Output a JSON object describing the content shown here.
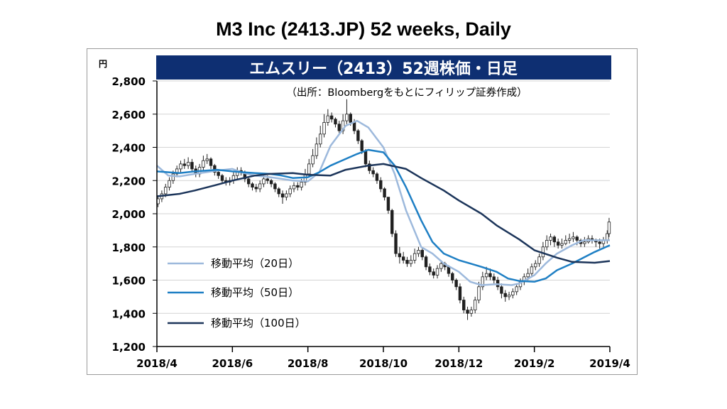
{
  "page": {
    "title": "M3 Inc (2413.JP) 52 weeks, Daily"
  },
  "chart_data": {
    "type": "line",
    "chart_title": "エムスリー（2413）52週株価・日足",
    "source_note": "（出所：Bloombergをもとにフィリップ証券作成）",
    "y_unit": "円",
    "ylim": [
      1200,
      2800
    ],
    "y_ticks": [
      1200,
      1400,
      1600,
      1800,
      2000,
      2200,
      2400,
      2600,
      2800
    ],
    "y_tick_labels": [
      "1,200",
      "1,400",
      "1,600",
      "1,800",
      "2,000",
      "2,200",
      "2,400",
      "2,600",
      "2,800"
    ],
    "x_tick_labels": [
      "2018/4",
      "2018/6",
      "2018/8",
      "2018/10",
      "2018/12",
      "2019/2",
      "2019/4"
    ],
    "x_range": [
      "2018/4",
      "2019/4"
    ],
    "grid": "horizontal",
    "legend_position": "bottom-left",
    "colors": {
      "title_bar": "#0e2f72",
      "candle": "#202020",
      "ma20": "#9db9dc",
      "ma50": "#1e7fc4",
      "ma100": "#1c355a",
      "grid": "#d4d4d4"
    },
    "series": [
      {
        "name": "移動平均（20日）",
        "key": "ma20",
        "x": [
          0.0,
          0.3,
          0.6,
          1.0,
          1.3,
          1.6,
          2.0,
          2.3,
          2.6,
          3.0,
          3.3,
          3.6,
          4.0,
          4.3,
          4.6,
          4.9,
          5.0,
          5.3,
          5.6,
          6.0,
          6.3,
          6.6,
          7.0,
          7.3,
          7.6,
          8.0,
          8.3,
          8.6,
          9.0,
          9.4,
          9.6,
          10.0,
          10.3,
          10.6,
          11.0,
          11.3,
          11.6,
          12.0
        ],
        "y": [
          2290,
          2230,
          2225,
          2240,
          2250,
          2260,
          2270,
          2245,
          2230,
          2220,
          2210,
          2200,
          2195,
          2250,
          2410,
          2500,
          2530,
          2560,
          2520,
          2400,
          2240,
          2020,
          1800,
          1760,
          1700,
          1650,
          1590,
          1570,
          1575,
          1570,
          1580,
          1630,
          1700,
          1760,
          1810,
          1840,
          1840,
          1840
        ]
      },
      {
        "name": "移動平均（50日）",
        "key": "ma50",
        "x": [
          0.0,
          0.6,
          1.0,
          1.3,
          1.6,
          2.0,
          2.3,
          2.6,
          3.0,
          3.3,
          3.6,
          4.0,
          4.3,
          4.6,
          5.0,
          5.3,
          5.6,
          6.0,
          6.3,
          6.6,
          7.0,
          7.3,
          7.6,
          8.0,
          8.3,
          8.6,
          9.0,
          9.3,
          9.6,
          10.0,
          10.3,
          10.6,
          11.0,
          11.3,
          11.6,
          12.0
        ],
        "y": [
          2255,
          2245,
          2255,
          2260,
          2265,
          2255,
          2250,
          2245,
          2240,
          2230,
          2215,
          2220,
          2250,
          2290,
          2330,
          2360,
          2385,
          2370,
          2290,
          2160,
          1960,
          1830,
          1760,
          1720,
          1700,
          1680,
          1650,
          1610,
          1595,
          1590,
          1610,
          1660,
          1700,
          1735,
          1770,
          1810
        ]
      },
      {
        "name": "移動平均（100日）",
        "key": "ma100",
        "x": [
          0.0,
          0.6,
          1.0,
          1.6,
          2.0,
          2.6,
          3.0,
          3.6,
          4.0,
          4.6,
          5.0,
          5.6,
          6.0,
          6.6,
          7.0,
          7.6,
          8.0,
          8.6,
          9.0,
          9.6,
          10.0,
          10.6,
          11.0,
          11.6,
          12.0
        ],
        "y": [
          2105,
          2120,
          2140,
          2175,
          2200,
          2230,
          2240,
          2245,
          2235,
          2230,
          2265,
          2290,
          2300,
          2270,
          2215,
          2140,
          2080,
          2000,
          1930,
          1845,
          1780,
          1735,
          1710,
          1705,
          1715
        ]
      }
    ],
    "candles": {
      "x": [
        0.03,
        0.13,
        0.23,
        0.33,
        0.43,
        0.53,
        0.63,
        0.73,
        0.83,
        0.93,
        1.03,
        1.13,
        1.23,
        1.33,
        1.43,
        1.53,
        1.63,
        1.73,
        1.83,
        1.93,
        2.03,
        2.13,
        2.23,
        2.33,
        2.43,
        2.53,
        2.63,
        2.73,
        2.83,
        2.93,
        3.03,
        3.13,
        3.23,
        3.33,
        3.43,
        3.53,
        3.63,
        3.73,
        3.83,
        3.93,
        4.03,
        4.13,
        4.23,
        4.33,
        4.43,
        4.53,
        4.63,
        4.73,
        4.83,
        4.93,
        5.03,
        5.13,
        5.23,
        5.33,
        5.43,
        5.53,
        5.63,
        5.73,
        5.83,
        5.93,
        6.03,
        6.13,
        6.23,
        6.33,
        6.43,
        6.53,
        6.63,
        6.73,
        6.83,
        6.93,
        7.03,
        7.13,
        7.23,
        7.33,
        7.43,
        7.53,
        7.63,
        7.73,
        7.83,
        7.93,
        8.03,
        8.13,
        8.23,
        8.33,
        8.43,
        8.53,
        8.63,
        8.73,
        8.83,
        8.93,
        9.03,
        9.13,
        9.23,
        9.33,
        9.43,
        9.53,
        9.63,
        9.73,
        9.83,
        9.93,
        10.03,
        10.13,
        10.23,
        10.33,
        10.43,
        10.53,
        10.63,
        10.73,
        10.83,
        10.93,
        11.03,
        11.13,
        11.23,
        11.33,
        11.43,
        11.53,
        11.63,
        11.73,
        11.83,
        11.93,
        11.98
      ],
      "open": [
        2060,
        2090,
        2120,
        2160,
        2200,
        2240,
        2270,
        2300,
        2290,
        2310,
        2270,
        2240,
        2280,
        2320,
        2330,
        2290,
        2250,
        2230,
        2200,
        2190,
        2200,
        2230,
        2260,
        2250,
        2210,
        2180,
        2160,
        2150,
        2180,
        2210,
        2200,
        2180,
        2150,
        2120,
        2100,
        2120,
        2150,
        2170,
        2160,
        2190,
        2240,
        2300,
        2350,
        2420,
        2480,
        2550,
        2590,
        2570,
        2540,
        2500,
        2560,
        2600,
        2550,
        2500,
        2440,
        2380,
        2300,
        2260,
        2240,
        2200,
        2150,
        2100,
        2020,
        1880,
        1760,
        1740,
        1720,
        1700,
        1720,
        1760,
        1780,
        1740,
        1680,
        1650,
        1630,
        1670,
        1700,
        1680,
        1640,
        1600,
        1560,
        1480,
        1420,
        1400,
        1420,
        1480,
        1560,
        1620,
        1640,
        1620,
        1600,
        1560,
        1520,
        1500,
        1510,
        1530,
        1560,
        1590,
        1620,
        1640,
        1680,
        1700,
        1740,
        1800,
        1840,
        1860,
        1830,
        1810,
        1820,
        1840,
        1850,
        1860,
        1840,
        1820,
        1830,
        1850,
        1840,
        1830,
        1820,
        1840,
        1880
      ],
      "close": [
        2090,
        2120,
        2160,
        2200,
        2240,
        2270,
        2300,
        2290,
        2310,
        2270,
        2240,
        2280,
        2320,
        2330,
        2290,
        2250,
        2230,
        2200,
        2190,
        2200,
        2230,
        2260,
        2250,
        2210,
        2180,
        2160,
        2150,
        2180,
        2210,
        2200,
        2180,
        2150,
        2120,
        2100,
        2120,
        2150,
        2170,
        2160,
        2190,
        2240,
        2300,
        2350,
        2420,
        2480,
        2550,
        2590,
        2570,
        2540,
        2500,
        2560,
        2600,
        2550,
        2500,
        2440,
        2380,
        2300,
        2260,
        2240,
        2200,
        2150,
        2100,
        2020,
        1880,
        1760,
        1740,
        1720,
        1700,
        1720,
        1760,
        1780,
        1740,
        1680,
        1650,
        1630,
        1670,
        1700,
        1680,
        1640,
        1600,
        1560,
        1480,
        1420,
        1400,
        1420,
        1480,
        1560,
        1620,
        1640,
        1620,
        1600,
        1560,
        1520,
        1500,
        1510,
        1530,
        1560,
        1590,
        1620,
        1640,
        1680,
        1700,
        1740,
        1800,
        1840,
        1860,
        1830,
        1810,
        1820,
        1840,
        1850,
        1860,
        1840,
        1820,
        1830,
        1850,
        1840,
        1830,
        1820,
        1840,
        1880,
        1950
      ],
      "high": [
        2110,
        2140,
        2180,
        2220,
        2260,
        2290,
        2320,
        2330,
        2340,
        2330,
        2290,
        2300,
        2350,
        2360,
        2340,
        2300,
        2260,
        2240,
        2220,
        2220,
        2250,
        2280,
        2280,
        2260,
        2220,
        2190,
        2180,
        2200,
        2230,
        2230,
        2210,
        2190,
        2160,
        2140,
        2140,
        2170,
        2190,
        2190,
        2210,
        2270,
        2330,
        2390,
        2460,
        2530,
        2600,
        2630,
        2610,
        2580,
        2560,
        2600,
        2690,
        2610,
        2570,
        2510,
        2450,
        2390,
        2320,
        2280,
        2250,
        2220,
        2160,
        2080,
        2030,
        1900,
        1800,
        1770,
        1740,
        1750,
        1790,
        1800,
        1790,
        1750,
        1700,
        1670,
        1690,
        1720,
        1710,
        1690,
        1650,
        1610,
        1580,
        1500,
        1440,
        1440,
        1500,
        1590,
        1650,
        1680,
        1670,
        1640,
        1620,
        1580,
        1540,
        1530,
        1550,
        1580,
        1610,
        1640,
        1670,
        1700,
        1720,
        1760,
        1830,
        1870,
        1880,
        1870,
        1850,
        1850,
        1870,
        1880,
        1890,
        1870,
        1850,
        1860,
        1870,
        1870,
        1850,
        1850,
        1860,
        1900,
        1975
      ],
      "low": [
        2040,
        2070,
        2100,
        2140,
        2180,
        2220,
        2250,
        2270,
        2270,
        2250,
        2220,
        2220,
        2260,
        2300,
        2270,
        2230,
        2210,
        2180,
        2170,
        2170,
        2180,
        2210,
        2230,
        2190,
        2160,
        2140,
        2130,
        2130,
        2160,
        2180,
        2160,
        2130,
        2100,
        2060,
        2080,
        2100,
        2130,
        2140,
        2140,
        2170,
        2220,
        2280,
        2330,
        2400,
        2460,
        2530,
        2550,
        2520,
        2480,
        2480,
        2540,
        2530,
        2480,
        2420,
        2360,
        2280,
        2240,
        2220,
        2180,
        2130,
        2080,
        2000,
        1860,
        1740,
        1700,
        1700,
        1680,
        1680,
        1700,
        1740,
        1720,
        1660,
        1630,
        1610,
        1610,
        1650,
        1660,
        1620,
        1580,
        1540,
        1460,
        1400,
        1360,
        1380,
        1400,
        1460,
        1540,
        1600,
        1600,
        1580,
        1540,
        1490,
        1470,
        1480,
        1490,
        1510,
        1540,
        1570,
        1600,
        1620,
        1660,
        1680,
        1720,
        1780,
        1810,
        1800,
        1790,
        1790,
        1810,
        1820,
        1830,
        1810,
        1800,
        1800,
        1820,
        1820,
        1800,
        1790,
        1800,
        1820,
        1860
      ]
    }
  }
}
